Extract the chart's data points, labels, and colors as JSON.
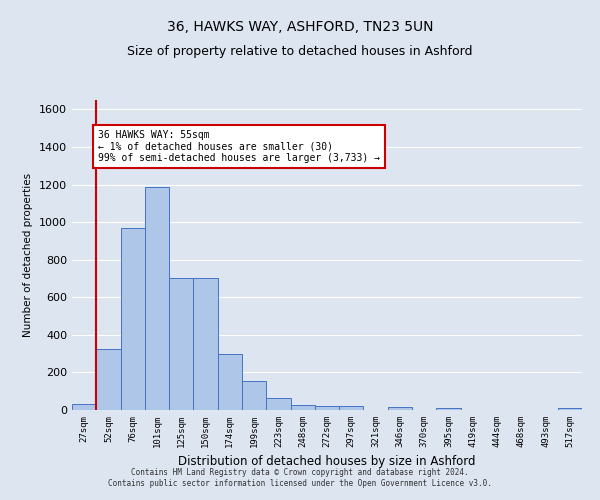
{
  "title": "36, HAWKS WAY, ASHFORD, TN23 5UN",
  "subtitle": "Size of property relative to detached houses in Ashford",
  "xlabel": "Distribution of detached houses by size in Ashford",
  "ylabel": "Number of detached properties",
  "bar_labels": [
    "27sqm",
    "52sqm",
    "76sqm",
    "101sqm",
    "125sqm",
    "150sqm",
    "174sqm",
    "199sqm",
    "223sqm",
    "248sqm",
    "272sqm",
    "297sqm",
    "321sqm",
    "346sqm",
    "370sqm",
    "395sqm",
    "419sqm",
    "444sqm",
    "468sqm",
    "493sqm",
    "517sqm"
  ],
  "bar_values": [
    30,
    325,
    970,
    1185,
    700,
    700,
    300,
    155,
    65,
    25,
    20,
    20,
    0,
    15,
    0,
    13,
    0,
    0,
    0,
    0,
    13
  ],
  "bar_color": "#aec6e8",
  "bar_edge_color": "#4472c4",
  "highlight_label": "36 HAWKS WAY: 55sqm",
  "annotation_line1": "← 1% of detached houses are smaller (30)",
  "annotation_line2": "99% of semi-detached houses are larger (3,733) →",
  "vline_color": "#cc0000",
  "annotation_box_color": "#cc0000",
  "ylim": [
    0,
    1650
  ],
  "yticks": [
    0,
    200,
    400,
    600,
    800,
    1000,
    1200,
    1400,
    1600
  ],
  "footer_line1": "Contains HM Land Registry data © Crown copyright and database right 2024.",
  "footer_line2": "Contains public sector information licensed under the Open Government Licence v3.0.",
  "bg_color": "#dde5f0",
  "grid_color": "#ffffff"
}
